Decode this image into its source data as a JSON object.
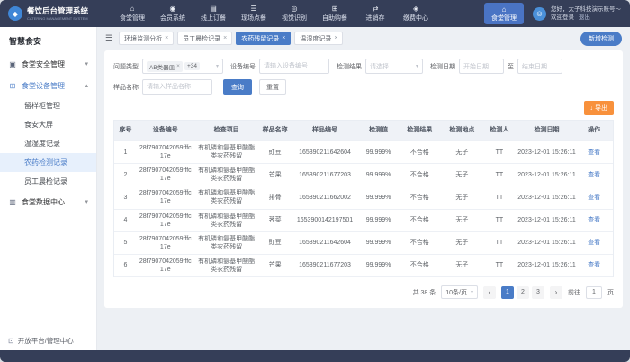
{
  "app": {
    "title": "餐饮后台管理系统",
    "subtitle": "CATERING MANAGEMENT SYSTEM"
  },
  "topnav": {
    "items": [
      {
        "label": "食堂管理",
        "glyph": "⌂"
      },
      {
        "label": "会员系统",
        "glyph": "◉"
      },
      {
        "label": "线上订餐",
        "glyph": "▤"
      },
      {
        "label": "现场点餐",
        "glyph": "☰"
      },
      {
        "label": "视觉识别",
        "glyph": "◎"
      },
      {
        "label": "自助购餐",
        "glyph": "⊞"
      },
      {
        "label": "进销存",
        "glyph": "⇄"
      },
      {
        "label": "缴费中心",
        "glyph": "◈"
      }
    ],
    "active": {
      "label": "食堂管理",
      "glyph": "⌂"
    }
  },
  "user": {
    "greeting": "您好，太子科技演示账号～",
    "welcome": "欢迎登录",
    "logout": "退出"
  },
  "sidebar": {
    "section_title": "智慧食安",
    "group1": {
      "label": "食堂安全管理",
      "glyph": "▣"
    },
    "group2": {
      "label": "食堂设备管理",
      "glyph": "⊞"
    },
    "children": [
      {
        "label": "留样柜管理"
      },
      {
        "label": "食安大屏"
      },
      {
        "label": "温湿度记录"
      },
      {
        "label": "农药检测记录",
        "active": true
      },
      {
        "label": "员工晨检记录"
      }
    ],
    "group3": {
      "label": "食堂数据中心",
      "glyph": "▥"
    },
    "footer": "开放平台/管理中心"
  },
  "tabs": [
    {
      "label": "环境监测分析"
    },
    {
      "label": "员工晨检记录"
    },
    {
      "label": "农药残留记录",
      "active": true
    },
    {
      "label": "温湿度记录"
    }
  ],
  "tabbar_action": "新增检测",
  "filters": {
    "type_label": "问题类型",
    "type_tag": "AB类器皿",
    "type_more": "+34",
    "device_label": "设备编号",
    "device_placeholder": "请输入设备编号",
    "result_label": "检测结果",
    "result_placeholder": "请选择",
    "date_label": "检测日期",
    "date_start": "开始日期",
    "date_sep": "至",
    "date_end": "结束日期",
    "sample_label": "样品名称",
    "sample_placeholder": "请输入样品名称",
    "search": "查询",
    "reset": "重置",
    "export": "导出"
  },
  "table": {
    "columns": [
      "序号",
      "设备编号",
      "检查项目",
      "样品名称",
      "样品编号",
      "检测值",
      "检测结果",
      "检测地点",
      "检测人",
      "检测日期",
      "操作"
    ],
    "rows": [
      {
        "no": "1",
        "device": "28f7907042059fffc17e",
        "item": "有机磷和氨基甲酸酯类农药残留",
        "sample": "豇豆",
        "code": "165390211642604",
        "value": "99.999%",
        "result": "不合格",
        "place": "无子",
        "person": "TT",
        "date": "2023-12-01 15:26:11",
        "op": "查看"
      },
      {
        "no": "2",
        "device": "28f7907042059fffc17e",
        "item": "有机磷和氨基甲酸酯类农药残留",
        "sample": "芒果",
        "code": "165390211677203",
        "value": "99.999%",
        "result": "不合格",
        "place": "无子",
        "person": "TT",
        "date": "2023-12-01 15:26:11",
        "op": "查看"
      },
      {
        "no": "3",
        "device": "28f7907042059fffc17e",
        "item": "有机磷和氨基甲酸酯类农药残留",
        "sample": "排骨",
        "code": "165390211662002",
        "value": "99.999%",
        "result": "不合格",
        "place": "无子",
        "person": "TT",
        "date": "2023-12-01 15:26:11",
        "op": "查看"
      },
      {
        "no": "4",
        "device": "28f7907042059fffc17e",
        "item": "有机磷和氨基甲酸酯类农药残留",
        "sample": "荠菜",
        "code": "1653900142197501",
        "value": "99.999%",
        "result": "不合格",
        "place": "无子",
        "person": "TT",
        "date": "2023-12-01 15:26:11",
        "op": "查看"
      },
      {
        "no": "5",
        "device": "28f7907042059fffc17e",
        "item": "有机磷和氨基甲酸酯类农药残留",
        "sample": "豇豆",
        "code": "165390211642604",
        "value": "99.999%",
        "result": "不合格",
        "place": "无子",
        "person": "TT",
        "date": "2023-12-01 15:26:11",
        "op": "查看"
      },
      {
        "no": "6",
        "device": "28f7907042059fffc17e",
        "item": "有机磷和氨基甲酸酯类农药残留",
        "sample": "芒果",
        "code": "165390211677203",
        "value": "99.999%",
        "result": "不合格",
        "place": "无子",
        "person": "TT",
        "date": "2023-12-01 15:26:11",
        "op": "查看"
      }
    ]
  },
  "pagination": {
    "total": "共 38 条",
    "size": "10条/页",
    "pages": [
      {
        "label": "1",
        "active": true
      },
      {
        "label": "2"
      },
      {
        "label": "3"
      }
    ],
    "goto_label": "前往",
    "goto_value": "1",
    "goto_suffix": "页"
  }
}
